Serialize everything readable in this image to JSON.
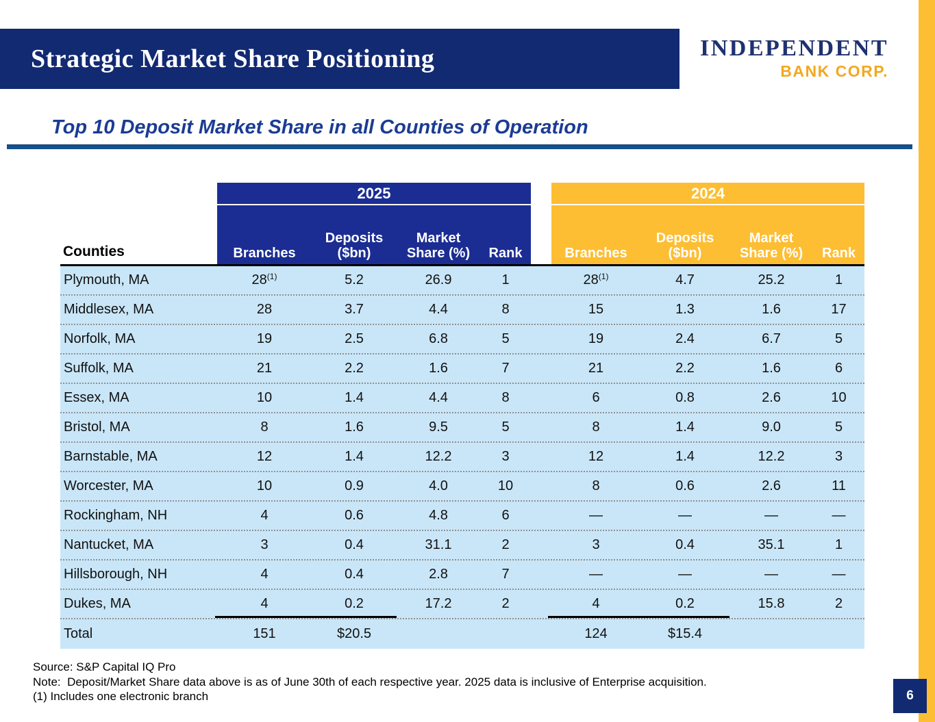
{
  "header": {
    "title": "Strategic Market Share Positioning"
  },
  "logo": {
    "line1": "INDEPENDENT",
    "line2": "BANK CORP."
  },
  "subtitle": "Top 10 Deposit Market Share in all Counties of Operation",
  "table": {
    "counties_label": "Counties",
    "years": [
      "2025",
      "2024"
    ],
    "columns": [
      "Branches",
      "Deposits ($bn)",
      "Market Share (%)",
      "Rank"
    ],
    "rows": [
      {
        "county": "Plymouth, MA",
        "y2025": {
          "branches": "28",
          "branches_sup": "(1)",
          "deposits": "5.2",
          "share": "26.9",
          "rank": "1"
        },
        "y2024": {
          "branches": "28",
          "branches_sup": "(1)",
          "deposits": "4.7",
          "share": "25.2",
          "rank": "1"
        }
      },
      {
        "county": "Middlesex, MA",
        "y2025": {
          "branches": "28",
          "branches_sup": "",
          "deposits": "3.7",
          "share": "4.4",
          "rank": "8"
        },
        "y2024": {
          "branches": "15",
          "branches_sup": "",
          "deposits": "1.3",
          "share": "1.6",
          "rank": "17"
        }
      },
      {
        "county": "Norfolk, MA",
        "y2025": {
          "branches": "19",
          "branches_sup": "",
          "deposits": "2.5",
          "share": "6.8",
          "rank": "5"
        },
        "y2024": {
          "branches": "19",
          "branches_sup": "",
          "deposits": "2.4",
          "share": "6.7",
          "rank": "5"
        }
      },
      {
        "county": "Suffolk, MA",
        "y2025": {
          "branches": "21",
          "branches_sup": "",
          "deposits": "2.2",
          "share": "1.6",
          "rank": "7"
        },
        "y2024": {
          "branches": "21",
          "branches_sup": "",
          "deposits": "2.2",
          "share": "1.6",
          "rank": "6"
        }
      },
      {
        "county": "Essex, MA",
        "y2025": {
          "branches": "10",
          "branches_sup": "",
          "deposits": "1.4",
          "share": "4.4",
          "rank": "8"
        },
        "y2024": {
          "branches": "6",
          "branches_sup": "",
          "deposits": "0.8",
          "share": "2.6",
          "rank": "10"
        }
      },
      {
        "county": "Bristol, MA",
        "y2025": {
          "branches": "8",
          "branches_sup": "",
          "deposits": "1.6",
          "share": "9.5",
          "rank": "5"
        },
        "y2024": {
          "branches": "8",
          "branches_sup": "",
          "deposits": "1.4",
          "share": "9.0",
          "rank": "5"
        }
      },
      {
        "county": "Barnstable, MA",
        "y2025": {
          "branches": "12",
          "branches_sup": "",
          "deposits": "1.4",
          "share": "12.2",
          "rank": "3"
        },
        "y2024": {
          "branches": "12",
          "branches_sup": "",
          "deposits": "1.4",
          "share": "12.2",
          "rank": "3"
        }
      },
      {
        "county": "Worcester, MA",
        "y2025": {
          "branches": "10",
          "branches_sup": "",
          "deposits": "0.9",
          "share": "4.0",
          "rank": "10"
        },
        "y2024": {
          "branches": "8",
          "branches_sup": "",
          "deposits": "0.6",
          "share": "2.6",
          "rank": "11"
        }
      },
      {
        "county": "Rockingham, NH",
        "y2025": {
          "branches": "4",
          "branches_sup": "",
          "deposits": "0.6",
          "share": "4.8",
          "rank": "6"
        },
        "y2024": {
          "branches": "—",
          "branches_sup": "",
          "deposits": "—",
          "share": "—",
          "rank": "—"
        }
      },
      {
        "county": "Nantucket, MA",
        "y2025": {
          "branches": "3",
          "branches_sup": "",
          "deposits": "0.4",
          "share": "31.1",
          "rank": "2"
        },
        "y2024": {
          "branches": "3",
          "branches_sup": "",
          "deposits": "0.4",
          "share": "35.1",
          "rank": "1"
        }
      },
      {
        "county": "Hillsborough, NH",
        "y2025": {
          "branches": "4",
          "branches_sup": "",
          "deposits": "0.4",
          "share": "2.8",
          "rank": "7"
        },
        "y2024": {
          "branches": "—",
          "branches_sup": "",
          "deposits": "—",
          "share": "—",
          "rank": "—"
        }
      },
      {
        "county": "Dukes, MA",
        "y2025": {
          "branches": "4",
          "branches_sup": "",
          "deposits": "0.2",
          "share": "17.2",
          "rank": "2"
        },
        "y2024": {
          "branches": "4",
          "branches_sup": "",
          "deposits": "0.2",
          "share": "15.8",
          "rank": "2"
        }
      }
    ],
    "total": {
      "label": "Total",
      "y2025": {
        "branches": "151",
        "deposits": "$20.5"
      },
      "y2024": {
        "branches": "124",
        "deposits": "$15.4"
      }
    }
  },
  "footnotes": [
    "Source: S&P Capital IQ Pro",
    "Note:  Deposit/Market Share data above is as of June 30th of each respective year. 2025 data is inclusive of Enterprise acquisition.",
    "(1) Includes one electronic branch"
  ],
  "page_number": "6",
  "colors": {
    "title_bar_navy": "#122A72",
    "table_navy": "#1B2D93",
    "gold": "#FDBE33",
    "logo_navy": "#1E3270",
    "logo_gold": "#F3A81E",
    "light_blue": "#C9E6F8",
    "subtitle_blue": "#1B3C94",
    "rule_blue": "#15518F"
  }
}
